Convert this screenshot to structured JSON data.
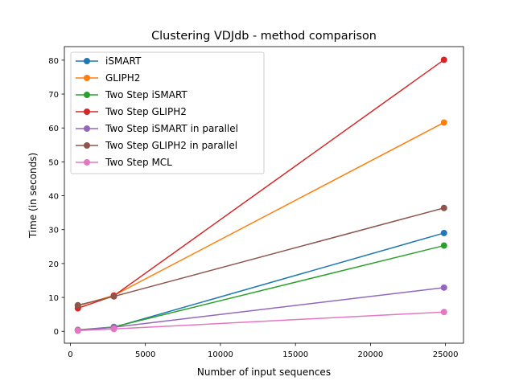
{
  "chart_data": {
    "type": "line",
    "title": "Clustering VDJdb - method comparison",
    "xlabel": "Number of input sequences",
    "ylabel": "Time (in seconds)",
    "xlim": [
      -400,
      26200
    ],
    "ylim": [
      -3.5,
      84
    ],
    "xticks": [
      0,
      5000,
      10000,
      15000,
      20000,
      25000
    ],
    "yticks": [
      0,
      10,
      20,
      30,
      40,
      50,
      60,
      70,
      80
    ],
    "legend_position": "upper left",
    "x": [
      500,
      2900,
      24900
    ],
    "series": [
      {
        "name": "iSMART",
        "color": "#1f77b4",
        "values": [
          0.3,
          1.2,
          29.0
        ]
      },
      {
        "name": "GLIPH2",
        "color": "#ff7f0e",
        "values": [
          7.5,
          10.6,
          61.6
        ]
      },
      {
        "name": "Two Step iSMART",
        "color": "#2ca02c",
        "values": [
          0.4,
          1.3,
          25.3
        ]
      },
      {
        "name": "Two Step GLIPH2",
        "color": "#d62728",
        "values": [
          6.8,
          10.5,
          80.1
        ]
      },
      {
        "name": "Two Step iSMART in parallel",
        "color": "#9467bd",
        "values": [
          0.4,
          1.2,
          12.9
        ]
      },
      {
        "name": "Two Step GLIPH2 in parallel",
        "color": "#8c564b",
        "values": [
          7.7,
          10.3,
          36.4
        ]
      },
      {
        "name": "Two Step MCL",
        "color": "#e377c2",
        "values": [
          0.2,
          0.7,
          5.7
        ]
      }
    ]
  }
}
